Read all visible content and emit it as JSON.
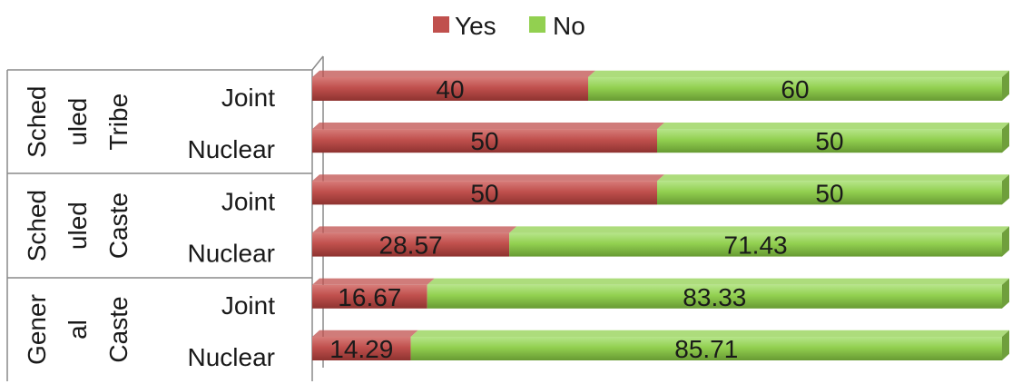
{
  "chart_data": {
    "type": "bar",
    "orientation": "horizontal",
    "stacked": "100%",
    "groups": [
      "Scheduled Tribe",
      "Scheduled Caste",
      "General Caste"
    ],
    "group_labels": [
      [
        "Sched",
        "uled",
        "Tribe"
      ],
      [
        "Sched",
        "uled",
        "Caste"
      ],
      [
        "Gener",
        "al",
        "Caste"
      ]
    ],
    "categories": [
      "Joint",
      "Nuclear",
      "Joint",
      "Nuclear",
      "Joint",
      "Nuclear"
    ],
    "series": [
      {
        "name": "Yes",
        "color": "#c0504d",
        "values": [
          40,
          50,
          50,
          28.57,
          16.67,
          14.29
        ],
        "labels": [
          "40",
          "50",
          "50",
          "28.57",
          "16.67",
          "14.29"
        ]
      },
      {
        "name": "No",
        "color": "#92d050",
        "values": [
          60,
          50,
          50,
          71.43,
          83.33,
          85.71
        ],
        "labels": [
          "60",
          "50",
          "50",
          "71.43",
          "83.33",
          "85.71"
        ]
      }
    ],
    "xlim": [
      0,
      100
    ],
    "legend_position": "top",
    "grid": false
  }
}
